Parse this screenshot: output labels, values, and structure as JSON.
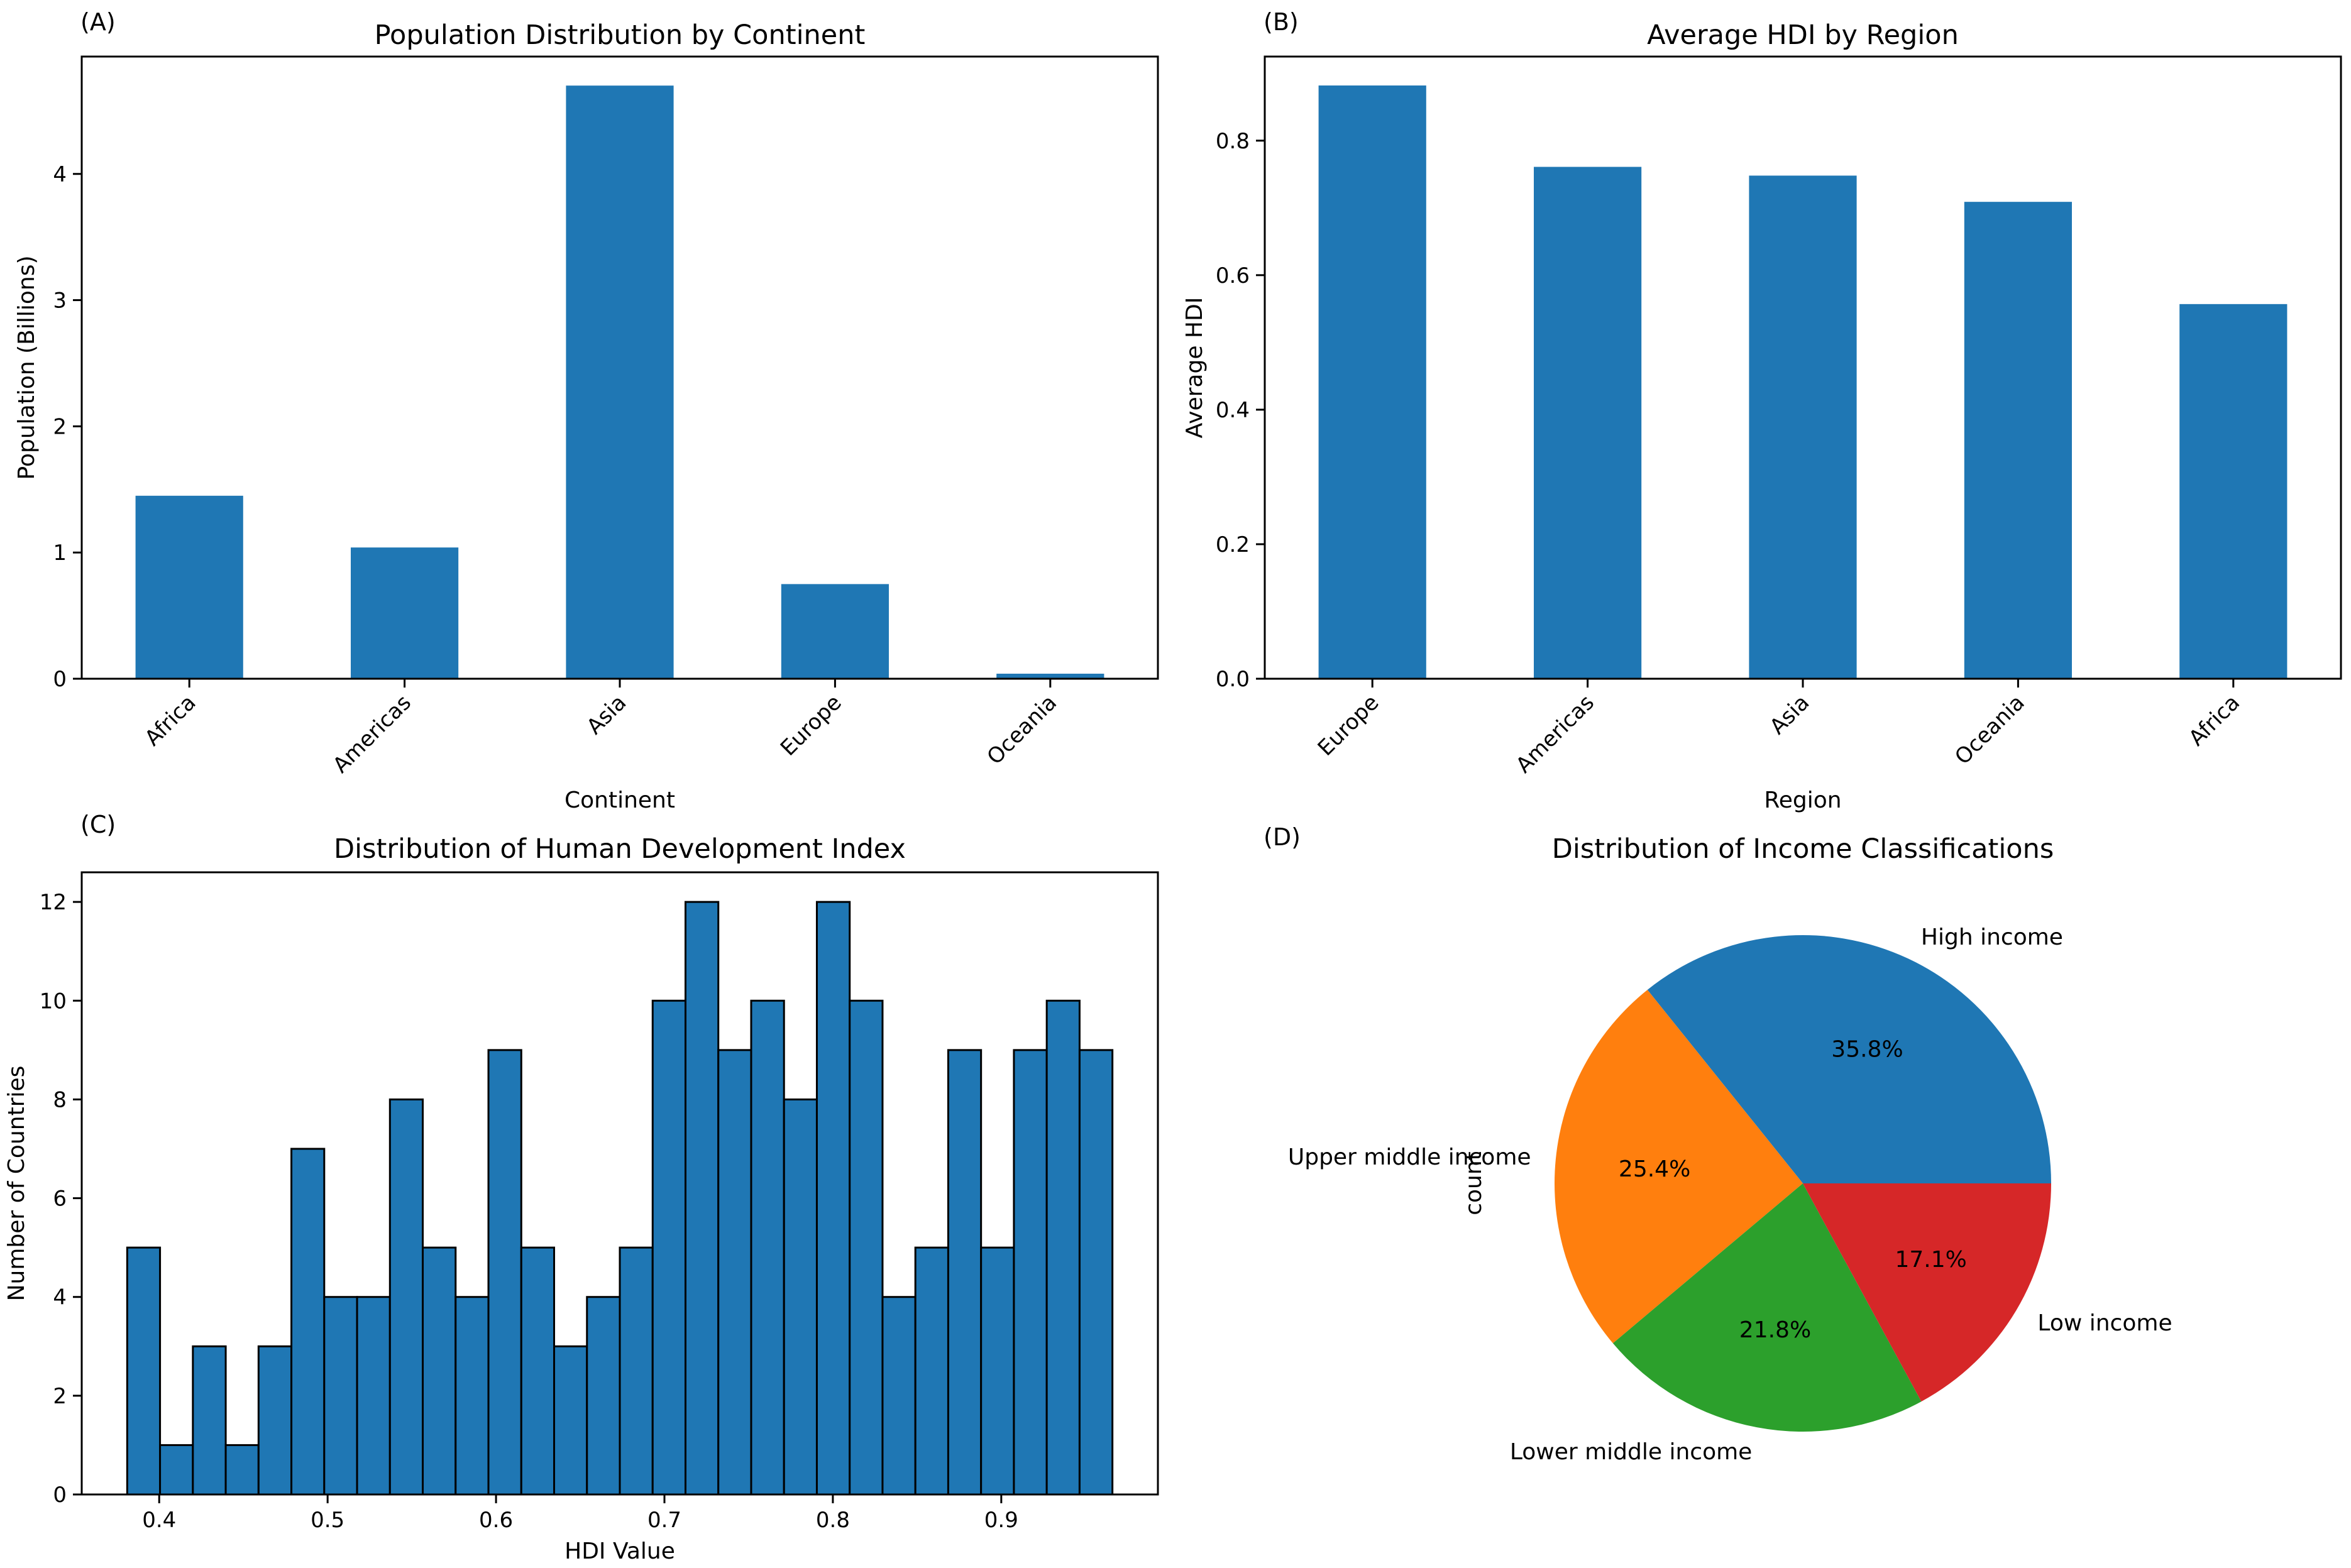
{
  "chart_data": [
    {
      "panel": "(A)",
      "type": "bar",
      "title": "Population Distribution by Continent",
      "xlabel": "Continent",
      "ylabel": "Population (Billions)",
      "categories": [
        "Africa",
        "Americas",
        "Asia",
        "Europe",
        "Oceania"
      ],
      "values": [
        1.45,
        1.04,
        4.7,
        0.75,
        0.04
      ],
      "ylim": [
        0,
        4.93
      ],
      "yticks": [
        0,
        1,
        2,
        3,
        4
      ],
      "color": "#1f77b4"
    },
    {
      "panel": "(B)",
      "type": "bar",
      "title": "Average HDI by Region",
      "xlabel": "Region",
      "ylabel": "Average HDI",
      "categories": [
        "Europe",
        "Americas",
        "Asia",
        "Oceania",
        "Africa"
      ],
      "values": [
        0.882,
        0.761,
        0.748,
        0.709,
        0.557
      ],
      "ylim": [
        0,
        0.925
      ],
      "yticks": [
        0.0,
        0.2,
        0.4,
        0.6,
        0.8
      ],
      "color": "#1f77b4"
    },
    {
      "panel": "(C)",
      "type": "histogram",
      "title": "Distribution of Human Development Index",
      "xlabel": "HDI Value",
      "ylabel": "Number of Countries",
      "bin_start": 0.381,
      "bin_width": 0.0195,
      "counts": [
        5,
        1,
        3,
        1,
        3,
        7,
        4,
        4,
        8,
        5,
        4,
        9,
        5,
        3,
        4,
        5,
        10,
        12,
        9,
        10,
        8,
        12,
        10,
        4,
        5,
        9,
        5,
        9,
        10,
        9
      ],
      "xlim": [
        0.354,
        0.993
      ],
      "ylim": [
        0,
        12.6
      ],
      "xticks": [
        0.4,
        0.5,
        0.6,
        0.7,
        0.8,
        0.9
      ],
      "yticks": [
        0,
        2,
        4,
        6,
        8,
        10,
        12
      ],
      "color": "#1f77b4",
      "edgecolor": "#000000"
    },
    {
      "panel": "(D)",
      "type": "pie",
      "title": "Distribution of Income Classifications",
      "ylabel": "count",
      "labels": [
        "High income",
        "Upper middle income",
        "Lower middle income",
        "Low income"
      ],
      "values": [
        35.8,
        25.4,
        21.8,
        17.1
      ],
      "percent_labels": [
        "35.8%",
        "25.4%",
        "21.8%",
        "17.1%"
      ],
      "colors": [
        "#1f77b4",
        "#ff7f0e",
        "#2ca02c",
        "#d62728"
      ],
      "startangle": 0
    }
  ]
}
